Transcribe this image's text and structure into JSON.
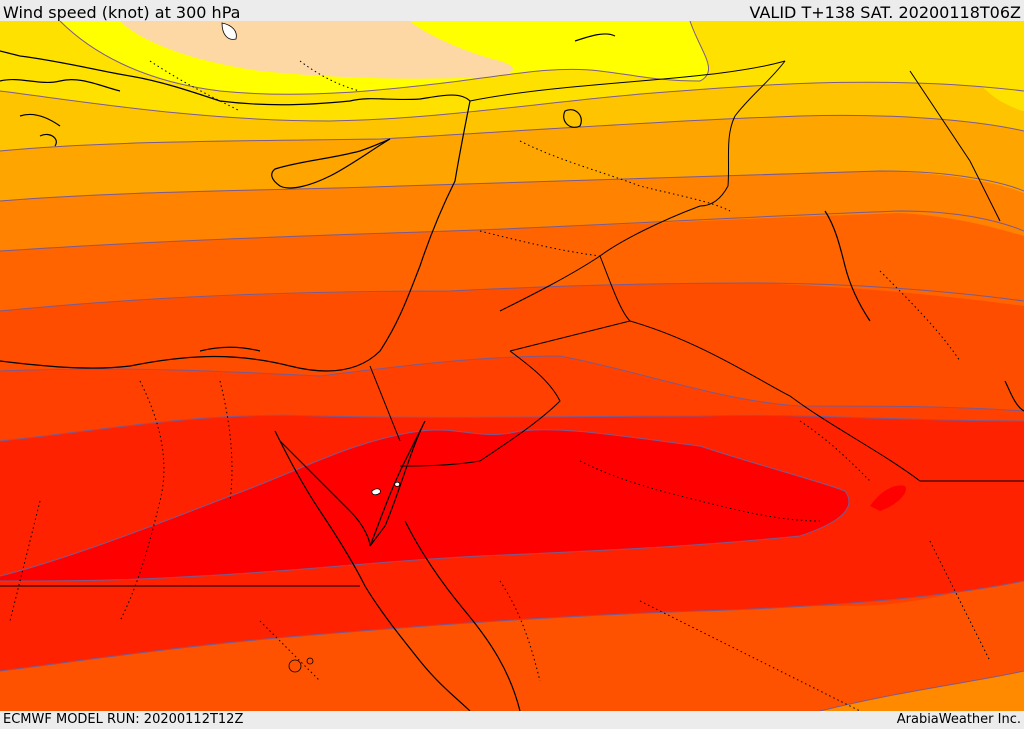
{
  "header": {
    "title": "Wind speed (knot) at 300 hPa",
    "valid": "VALID T+138 SAT. 20200118T06Z"
  },
  "footer": {
    "model_run": "ECMWF MODEL RUN: 20200112T12Z",
    "credit": "ArabiaWeather Inc."
  },
  "map": {
    "variable": "wind speed at 300 hPa",
    "units": "knot",
    "colors": {
      "peach": "#fdd8a4",
      "pale_yellow": "#ffff00",
      "yellow": "#ffe100",
      "amber": "#ffc400",
      "orange_light": "#ffa300",
      "orange": "#ff7f00",
      "orange_dark": "#ff6000",
      "red_orange": "#ff4000",
      "red": "#ff2200",
      "core_red": "#ff0000",
      "contour_line": "#7a5a90",
      "coastline": "#000000"
    },
    "features": [
      "shaded-wind-speed-bands",
      "contour-lines",
      "coastlines",
      "country-borders",
      "province-borders"
    ]
  }
}
